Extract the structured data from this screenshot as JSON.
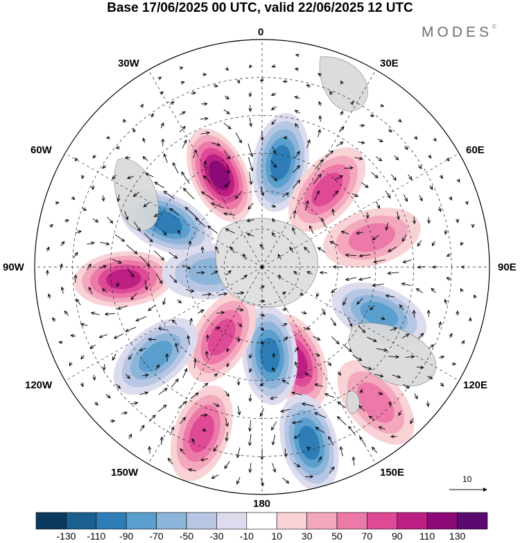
{
  "title": "Base 17/06/2025 00 UTC, valid 22/06/2025 12 UTC",
  "brand": {
    "text": "MODES",
    "mark": "©"
  },
  "longitude_labels": {
    "lon_0": "0",
    "lon_30e": "30E",
    "lon_60e": "60E",
    "lon_90e": "90E",
    "lon_120e": "120E",
    "lon_150e": "150E",
    "lon_180": "180",
    "lon_150w": "150W",
    "lon_120w": "120W",
    "lon_90w": "90W",
    "lon_60w": "60W",
    "lon_30w": "30W"
  },
  "vector_scale": {
    "label": "10"
  },
  "colorbar": {
    "colors": [
      "#0b3a5e",
      "#1a5f8e",
      "#2e7db6",
      "#5a9fcd",
      "#8db4d9",
      "#b6c6e3",
      "#dcdcee",
      "#ffffff",
      "#f9d2d6",
      "#f4a8bd",
      "#ed79a8",
      "#df4a97",
      "#bd1f83",
      "#8b0a78",
      "#5a0a6f"
    ],
    "labels": [
      "-130",
      "-110",
      "-90",
      "-70",
      "-50",
      "-30",
      "-10",
      "10",
      "30",
      "50",
      "70",
      "90",
      "110",
      "130"
    ]
  },
  "anomaly_centers": [
    {
      "lon": -25,
      "lat": 50,
      "value": 115
    },
    {
      "lon": 10,
      "lat": 48,
      "value": -85
    },
    {
      "lon": 40,
      "lat": 50,
      "value": 75
    },
    {
      "lon": -65,
      "lat": 48,
      "value": -90
    },
    {
      "lon": 75,
      "lat": 45,
      "value": 55
    },
    {
      "lon": -95,
      "lat": 35,
      "value": 80
    },
    {
      "lon": -95,
      "lat": 70,
      "value": -40
    },
    {
      "lon": 112,
      "lat": 40,
      "value": -70
    },
    {
      "lon": 160,
      "lat": 50,
      "value": 95
    },
    {
      "lon": 175,
      "lat": 55,
      "value": -80
    },
    {
      "lon": -150,
      "lat": 58,
      "value": 70
    },
    {
      "lon": -130,
      "lat": 35,
      "value": -65
    },
    {
      "lon": -160,
      "lat": 20,
      "value": 70
    },
    {
      "lon": 165,
      "lat": 18,
      "value": -80
    },
    {
      "lon": 140,
      "lat": 20,
      "value": 50
    }
  ]
}
